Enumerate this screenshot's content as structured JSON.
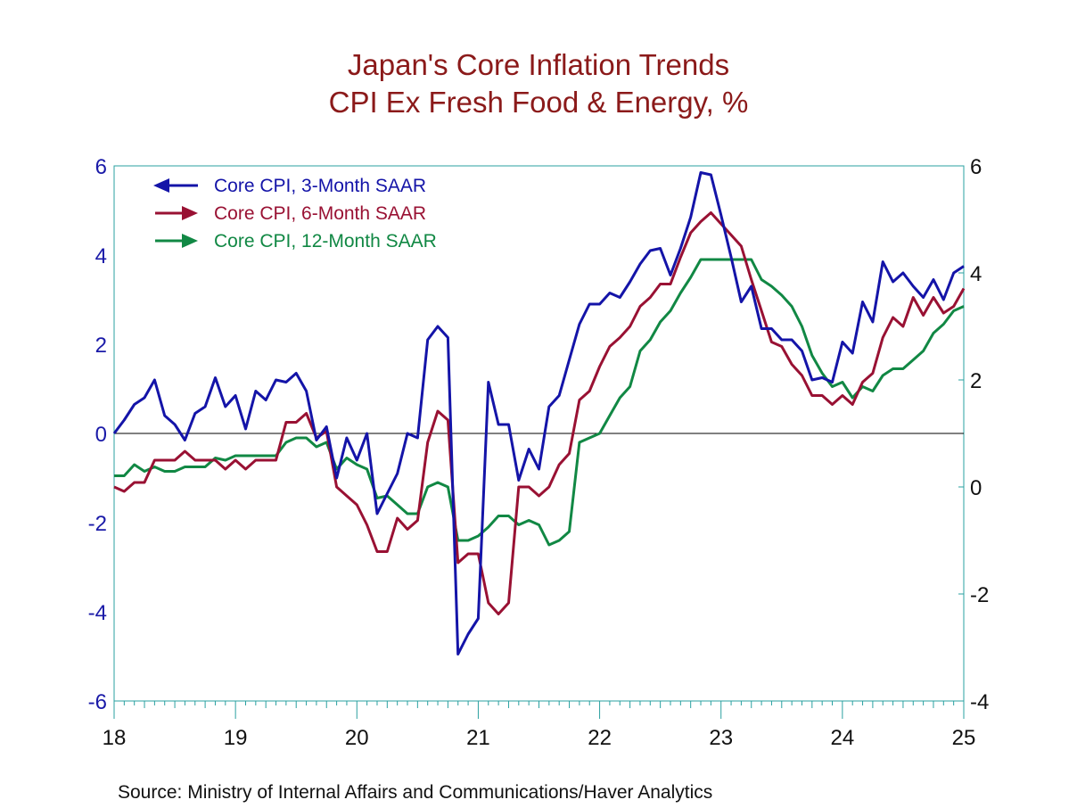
{
  "chart_data": {
    "type": "line",
    "title": "Japan's Core Inflation Trends",
    "subtitle": "CPI Ex Fresh Food & Energy, %",
    "source": "Source:  Ministry of Internal Affairs and Communications/Haver Analytics",
    "x_start": 2018.0,
    "x_step": 0.08333333,
    "xlim": [
      2018,
      2025
    ],
    "x_tick_labels": [
      "18",
      "19",
      "20",
      "21",
      "22",
      "23",
      "24",
      "25"
    ],
    "left_axis": {
      "ylim": [
        -6,
        6
      ],
      "ticks": [
        "6",
        "4",
        "2",
        "0",
        "-2",
        "-4",
        "-6"
      ],
      "color": "#1a1aa8"
    },
    "right_axis": {
      "ylim": [
        -4,
        6
      ],
      "ticks": [
        "6",
        "4",
        "2",
        "0",
        "-2",
        "-4"
      ]
    },
    "zero_line": 0,
    "series": [
      {
        "name": "Core CPI, 3-Month SAAR",
        "axis": "left",
        "color": "#1414a8",
        "legend_arrow": "left",
        "values": [
          0.0,
          0.3,
          0.65,
          0.8,
          1.2,
          0.4,
          0.2,
          -0.15,
          0.45,
          0.6,
          1.25,
          0.6,
          0.85,
          0.1,
          0.95,
          0.75,
          1.2,
          1.15,
          1.35,
          0.95,
          -0.15,
          0.15,
          -1.0,
          -0.1,
          -0.6,
          0.0,
          -1.8,
          -1.35,
          -0.9,
          0.0,
          -0.1,
          2.1,
          2.4,
          2.15,
          -4.95,
          -4.5,
          -4.15,
          1.15,
          0.2,
          0.2,
          -1.05,
          -0.35,
          -0.8,
          0.6,
          0.85,
          1.65,
          2.45,
          2.9,
          2.9,
          3.15,
          3.05,
          3.4,
          3.8,
          4.1,
          4.15,
          3.55,
          4.15,
          4.85,
          5.85,
          5.8,
          4.9,
          3.95,
          2.95,
          3.3,
          2.35,
          2.35,
          2.1,
          2.1,
          1.85,
          1.2,
          1.25,
          1.15,
          2.05,
          1.8,
          2.95,
          2.5,
          3.85,
          3.4,
          3.6,
          3.3,
          3.05,
          3.45,
          3.0,
          3.6,
          3.75
        ]
      },
      {
        "name": "Core CPI, 6-Month SAAR",
        "axis": "left",
        "color": "#991133",
        "legend_arrow": "right",
        "values": [
          -1.2,
          -1.3,
          -1.1,
          -1.1,
          -0.6,
          -0.6,
          -0.6,
          -0.4,
          -0.6,
          -0.6,
          -0.6,
          -0.8,
          -0.6,
          -0.8,
          -0.6,
          -0.6,
          -0.6,
          0.25,
          0.25,
          0.45,
          -0.1,
          0.05,
          -1.2,
          -1.4,
          -1.6,
          -2.05,
          -2.65,
          -2.65,
          -1.9,
          -2.15,
          -1.95,
          -0.2,
          0.5,
          0.3,
          -2.9,
          -2.7,
          -2.7,
          -3.8,
          -4.05,
          -3.8,
          -1.2,
          -1.2,
          -1.4,
          -1.2,
          -0.7,
          -0.45,
          0.75,
          0.95,
          1.5,
          1.95,
          2.15,
          2.4,
          2.85,
          3.05,
          3.35,
          3.35,
          3.95,
          4.5,
          4.75,
          4.95,
          4.7,
          4.45,
          4.2,
          3.45,
          2.75,
          2.05,
          1.95,
          1.55,
          1.3,
          0.85,
          0.85,
          0.65,
          0.85,
          0.65,
          1.15,
          1.35,
          2.15,
          2.6,
          2.4,
          3.05,
          2.65,
          3.05,
          2.7,
          2.85,
          3.25
        ]
      },
      {
        "name": "Core CPI, 12-Month SAAR",
        "axis": "left",
        "color": "#118844",
        "legend_arrow": "right",
        "values": [
          -0.95,
          -0.95,
          -0.7,
          -0.85,
          -0.75,
          -0.85,
          -0.85,
          -0.75,
          -0.75,
          -0.75,
          -0.55,
          -0.6,
          -0.5,
          -0.5,
          -0.5,
          -0.5,
          -0.5,
          -0.2,
          -0.1,
          -0.1,
          -0.3,
          -0.2,
          -0.8,
          -0.55,
          -0.7,
          -0.8,
          -1.45,
          -1.4,
          -1.6,
          -1.8,
          -1.8,
          -1.2,
          -1.1,
          -1.2,
          -2.4,
          -2.4,
          -2.3,
          -2.1,
          -1.85,
          -1.85,
          -2.05,
          -1.95,
          -2.05,
          -2.5,
          -2.4,
          -2.2,
          -0.2,
          -0.1,
          0.0,
          0.4,
          0.8,
          1.05,
          1.85,
          2.1,
          2.5,
          2.75,
          3.15,
          3.5,
          3.9,
          3.9,
          3.9,
          3.9,
          3.9,
          3.9,
          3.45,
          3.3,
          3.1,
          2.85,
          2.4,
          1.75,
          1.35,
          1.05,
          1.15,
          0.8,
          1.05,
          0.95,
          1.3,
          1.45,
          1.45,
          1.65,
          1.85,
          2.25,
          2.45,
          2.75,
          2.85
        ]
      }
    ]
  }
}
